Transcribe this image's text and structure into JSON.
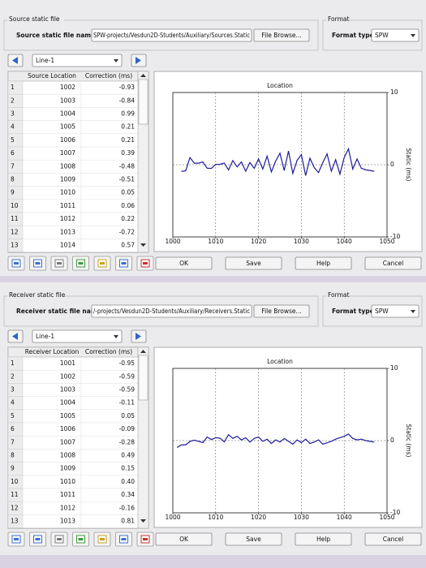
{
  "panels": [
    {
      "file_group": "Source static file",
      "file_label": "Source static file name",
      "file_path": "SPW-projects/Vesdun2D-Students/Auxiliary/Sources.Static",
      "browse_button": "File Browse...",
      "format_group": "Format",
      "format_label": "Format type",
      "format_value": "SPW",
      "line_value": "Line-1",
      "table": {
        "headers": [
          "Source Location",
          "Correction (ms)"
        ],
        "rows": [
          [
            "1",
            "1002",
            "-0.93"
          ],
          [
            "2",
            "1003",
            "-0.84"
          ],
          [
            "3",
            "1004",
            "0.99"
          ],
          [
            "4",
            "1005",
            "0.21"
          ],
          [
            "5",
            "1006",
            "0.21"
          ],
          [
            "6",
            "1007",
            "0.39"
          ],
          [
            "7",
            "1008",
            "-0.48"
          ],
          [
            "8",
            "1009",
            "-0.51"
          ],
          [
            "9",
            "1010",
            "0.05"
          ],
          [
            "10",
            "1011",
            "0.06"
          ],
          [
            "11",
            "1012",
            "0.22"
          ],
          [
            "12",
            "1013",
            "-0.72"
          ],
          [
            "13",
            "1014",
            "0.57"
          ]
        ]
      },
      "chart": {
        "type": "line",
        "title": "Location",
        "y_label": "Static (ms)",
        "xlim": [
          1000,
          1050
        ],
        "ylim": [
          -10,
          10
        ],
        "xticks": [
          1000,
          1010,
          1020,
          1030,
          1040,
          1050
        ],
        "yticks": [
          10,
          0,
          -10
        ],
        "grid": true,
        "series": [
          {
            "color": "#1c1c9c",
            "x": [
              1002,
              1003,
              1004,
              1005,
              1006,
              1007,
              1008,
              1009,
              1010,
              1011,
              1012,
              1013,
              1014,
              1015,
              1016,
              1017,
              1018,
              1019,
              1020,
              1021,
              1022,
              1023,
              1024,
              1025,
              1026,
              1027,
              1028,
              1029,
              1030,
              1031,
              1032,
              1033,
              1034,
              1035,
              1036,
              1037,
              1038,
              1039,
              1040,
              1041,
              1042,
              1043,
              1044,
              1045,
              1046,
              1047
            ],
            "values": [
              -0.93,
              -0.84,
              0.99,
              0.21,
              0.21,
              0.39,
              -0.48,
              -0.51,
              0.05,
              0.06,
              0.22,
              -0.72,
              0.57,
              -0.3,
              0.4,
              -0.9,
              0.3,
              -0.5,
              0.8,
              -0.6,
              1.2,
              -1,
              0.5,
              1.6,
              -0.8,
              1.9,
              -1.2,
              0.6,
              1.4,
              -1.5,
              0.9,
              -0.4,
              -1.1,
              0.3,
              1.5,
              -0.9,
              0.7,
              -1.3,
              1,
              2.2,
              -0.6,
              0.8,
              -0.5,
              -0.7,
              -0.8,
              -0.9
            ]
          }
        ]
      },
      "buttons": [
        "OK",
        "Save",
        "Help",
        "Cancel"
      ]
    },
    {
      "file_group": "Receiver static file",
      "file_label": "Receiver static file name",
      "file_path": "/-projects/Vesdun2D-Students/Auxiliary/Receivers.Static",
      "browse_button": "File Browse...",
      "format_group": "Format",
      "format_label": "Format type",
      "format_value": "SPW",
      "line_value": "Line-1",
      "table": {
        "headers": [
          "Receiver Location",
          "Correction (ms)"
        ],
        "rows": [
          [
            "1",
            "1001",
            "-0.95"
          ],
          [
            "2",
            "1002",
            "-0.59"
          ],
          [
            "3",
            "1003",
            "-0.59"
          ],
          [
            "4",
            "1004",
            "-0.11"
          ],
          [
            "5",
            "1005",
            "0.05"
          ],
          [
            "6",
            "1006",
            "-0.09"
          ],
          [
            "7",
            "1007",
            "-0.28"
          ],
          [
            "8",
            "1008",
            "0.49"
          ],
          [
            "9",
            "1009",
            "0.15"
          ],
          [
            "10",
            "1010",
            "0.40"
          ],
          [
            "11",
            "1011",
            "0.34"
          ],
          [
            "12",
            "1012",
            "-0.16"
          ],
          [
            "13",
            "1013",
            "0.81"
          ]
        ]
      },
      "chart": {
        "type": "line",
        "title": "Location",
        "y_label": "Static (ms)",
        "xlim": [
          1000,
          1050
        ],
        "ylim": [
          -10,
          10
        ],
        "xticks": [
          1000,
          1010,
          1020,
          1030,
          1040,
          1050
        ],
        "yticks": [
          10,
          0,
          -10
        ],
        "grid": true,
        "series": [
          {
            "color": "#1c1c9c",
            "x": [
              1001,
              1002,
              1003,
              1004,
              1005,
              1006,
              1007,
              1008,
              1009,
              1010,
              1011,
              1012,
              1013,
              1014,
              1015,
              1016,
              1017,
              1018,
              1019,
              1020,
              1021,
              1022,
              1023,
              1024,
              1025,
              1026,
              1027,
              1028,
              1029,
              1030,
              1031,
              1032,
              1033,
              1034,
              1035,
              1036,
              1037,
              1038,
              1039,
              1040,
              1041,
              1042,
              1043,
              1044,
              1045,
              1046,
              1047
            ],
            "values": [
              -0.95,
              -0.59,
              -0.59,
              -0.11,
              0.05,
              -0.09,
              -0.28,
              0.49,
              0.15,
              0.4,
              0.34,
              -0.16,
              0.81,
              0.3,
              0.6,
              0.1,
              0.4,
              -0.2,
              0.3,
              0.5,
              -0.1,
              0.2,
              -0.4,
              0.1,
              -0.2,
              0.3,
              -0.1,
              -0.5,
              0.1,
              -0.3,
              0.2,
              -0.4,
              -0.2,
              0.1,
              -0.5,
              -0.3,
              -0.1,
              0.2,
              0.4,
              0.6,
              0.9,
              0.3,
              0.1,
              0.2,
              0,
              -0.1,
              -0.2
            ]
          }
        ]
      },
      "buttons": [
        "OK",
        "Save",
        "Help",
        "Cancel"
      ]
    }
  ]
}
